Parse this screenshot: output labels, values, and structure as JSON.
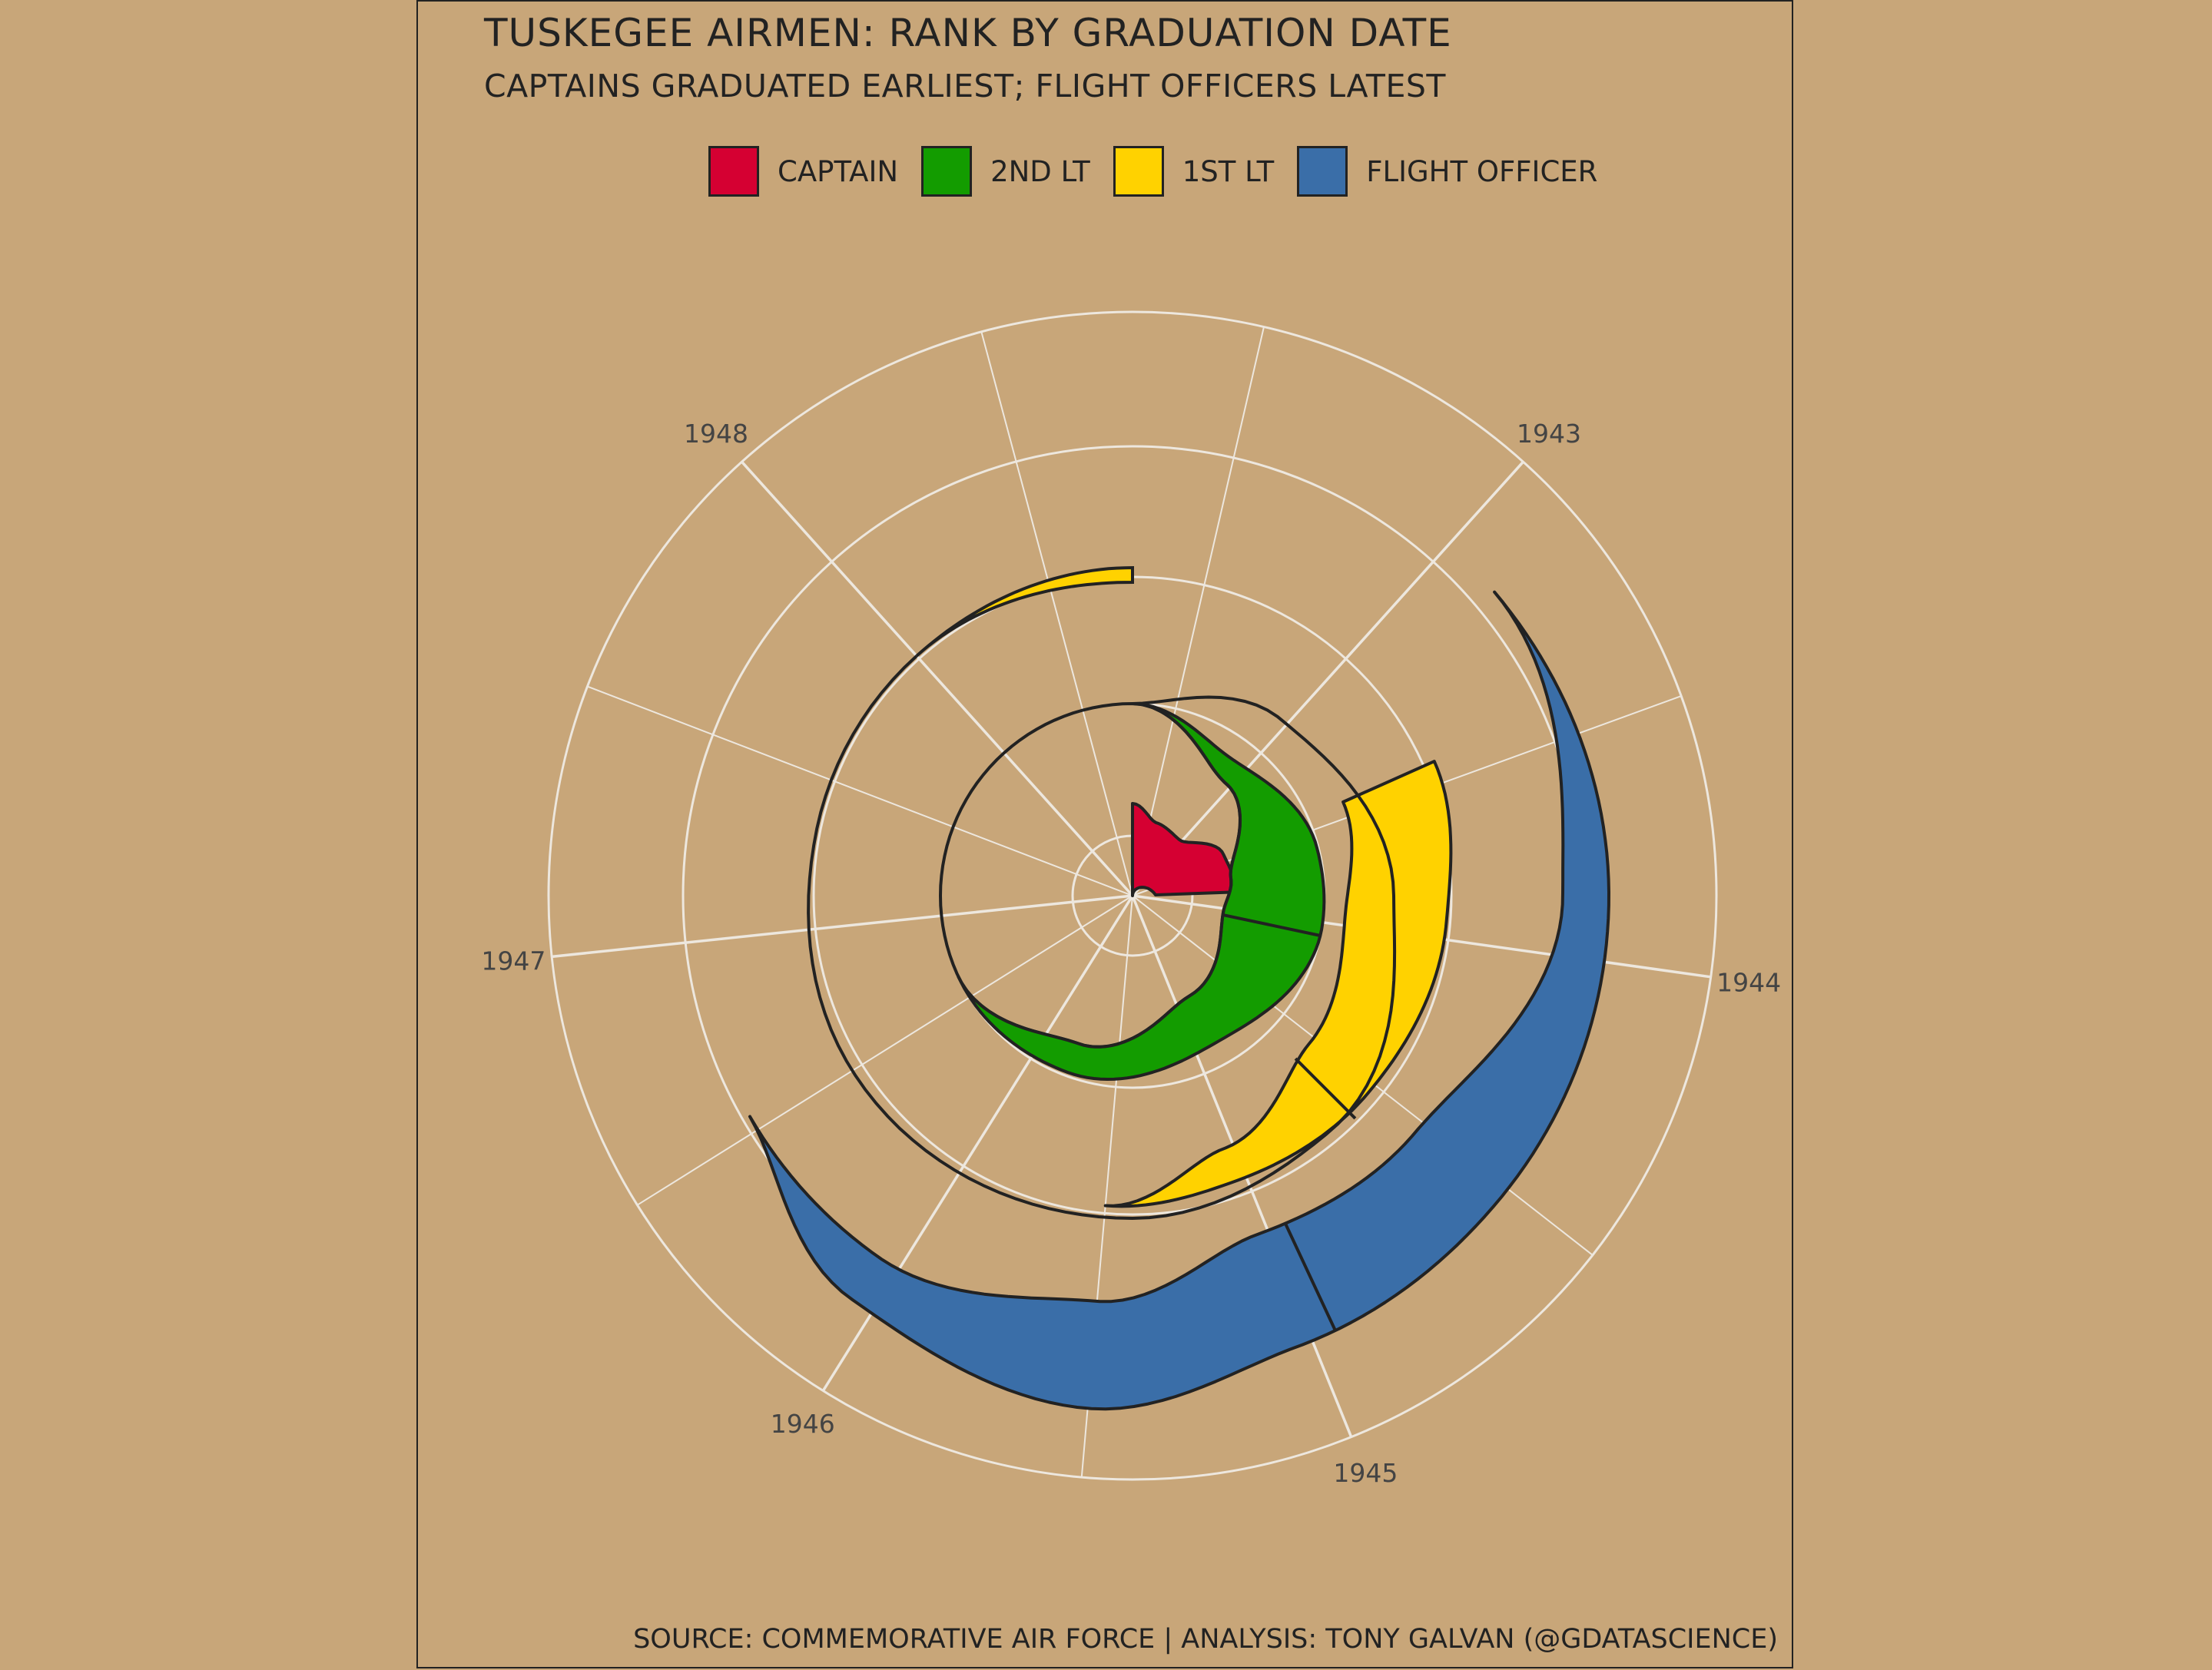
{
  "title": "TUSKEGEE AIRMEN: RANK BY GRADUATION DATE",
  "subtitle": "CAPTAINS GRADUATED EARLIEST; FLIGHT OFFICERS LATEST",
  "caption": "SOURCE: COMMEMORATIVE AIR FORCE | ANALYSIS: TONY GALVAN (@GDATASCIENCE)",
  "colors": {
    "background": "#C8A679",
    "grid": "#EDE7DE",
    "outline": "#222222",
    "captain": "#D50032",
    "second_lt": "#139C00",
    "first_lt": "#FFD200",
    "flight_officer": "#3A6EA8"
  },
  "legend": [
    {
      "label": "CAPTAIN",
      "color": "#D50032"
    },
    {
      "label": "2ND LT",
      "color": "#139C00"
    },
    {
      "label": "1ST LT",
      "color": "#FFD200"
    },
    {
      "label": "FLIGHT OFFICER",
      "color": "#3A6EA8"
    }
  ],
  "chart_data": {
    "type": "area",
    "coord": "polar",
    "legend_position": "top",
    "theta_labels": [
      "1943",
      "1944",
      "1945",
      "1946",
      "1947",
      "1948"
    ],
    "theta_label_angles_deg": [
      42,
      98,
      158,
      212,
      264,
      318
    ],
    "series": [
      {
        "name": "CAPTAIN"
      },
      {
        "name": "2ND LT"
      },
      {
        "name": "1ST LT"
      },
      {
        "name": "FLIGHT OFFICER"
      }
    ]
  }
}
